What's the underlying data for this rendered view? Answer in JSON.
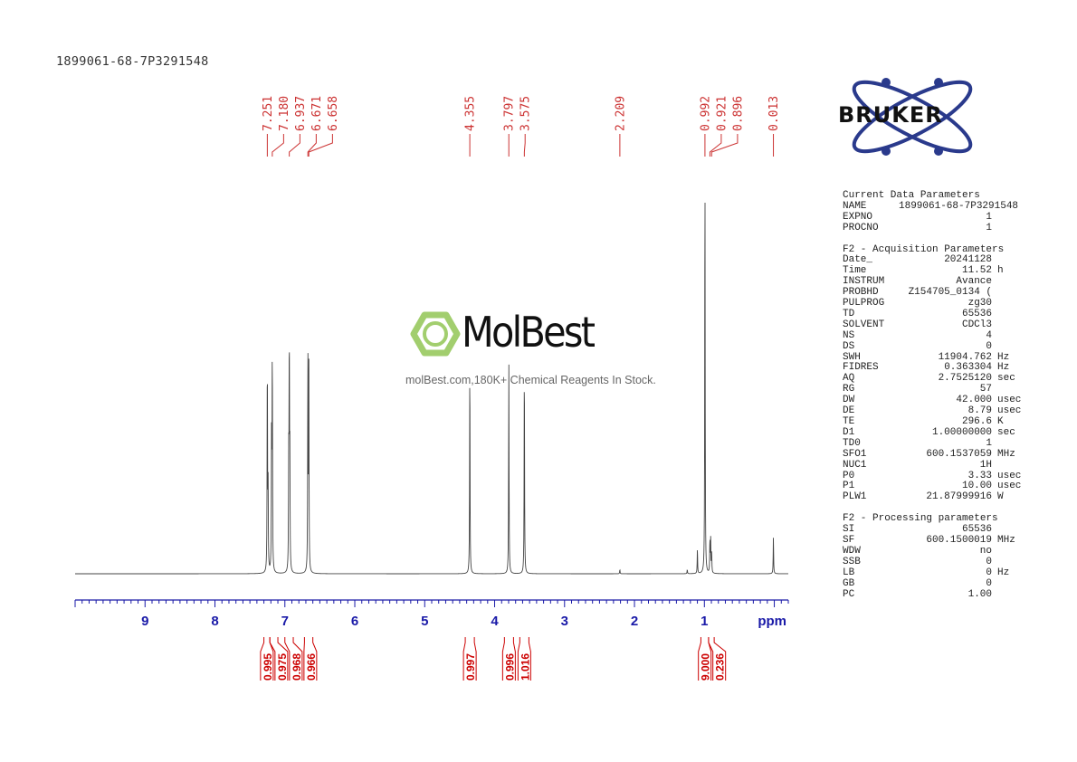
{
  "sample_id": "1899061-68-7P3291548",
  "watermark": {
    "brand": "MolBest",
    "tagline": "molBest.com,180K+ Chemical Reagents In Stock."
  },
  "logo": {
    "brand": "BRUKER"
  },
  "params": {
    "current": {
      "title": "Current Data Parameters",
      "rows": [
        {
          "k": "NAME",
          "v": "1899061-68-7P3291548",
          "u": ""
        },
        {
          "k": "EXPNO",
          "v": "1",
          "u": ""
        },
        {
          "k": "PROCNO",
          "v": "1",
          "u": ""
        }
      ]
    },
    "acq": {
      "title": "F2 - Acquisition Parameters",
      "rows": [
        {
          "k": "Date_",
          "v": "20241128",
          "u": ""
        },
        {
          "k": "Time",
          "v": "11.52",
          "u": "h"
        },
        {
          "k": "INSTRUM",
          "v": "Avance",
          "u": ""
        },
        {
          "k": "PROBHD",
          "v": "Z154705_0134 (",
          "u": ""
        },
        {
          "k": "PULPROG",
          "v": "zg30",
          "u": ""
        },
        {
          "k": "TD",
          "v": "65536",
          "u": ""
        },
        {
          "k": "SOLVENT",
          "v": "CDCl3",
          "u": ""
        },
        {
          "k": "NS",
          "v": "4",
          "u": ""
        },
        {
          "k": "DS",
          "v": "0",
          "u": ""
        },
        {
          "k": "SWH",
          "v": "11904.762",
          "u": "Hz"
        },
        {
          "k": "FIDRES",
          "v": "0.363304",
          "u": "Hz"
        },
        {
          "k": "AQ",
          "v": "2.7525120",
          "u": "sec"
        },
        {
          "k": "RG",
          "v": "57",
          "u": ""
        },
        {
          "k": "DW",
          "v": "42.000",
          "u": "usec"
        },
        {
          "k": "DE",
          "v": "8.79",
          "u": "usec"
        },
        {
          "k": "TE",
          "v": "296.6",
          "u": "K"
        },
        {
          "k": "D1",
          "v": "1.00000000",
          "u": "sec"
        },
        {
          "k": "TD0",
          "v": "1",
          "u": ""
        },
        {
          "k": "SFO1",
          "v": "600.1537059",
          "u": "MHz"
        },
        {
          "k": "NUC1",
          "v": "1H",
          "u": ""
        },
        {
          "k": "P0",
          "v": "3.33",
          "u": "usec"
        },
        {
          "k": "P1",
          "v": "10.00",
          "u": "usec"
        },
        {
          "k": "PLW1",
          "v": "21.87999916",
          "u": "W"
        }
      ]
    },
    "proc": {
      "title": "F2 - Processing parameters",
      "rows": [
        {
          "k": "SI",
          "v": "65536",
          "u": ""
        },
        {
          "k": "SF",
          "v": "600.1500019",
          "u": "MHz"
        },
        {
          "k": "WDW",
          "v": "no",
          "u": ""
        },
        {
          "k": "SSB",
          "v": "0",
          "u": ""
        },
        {
          "k": "LB",
          "v": "0",
          "u": "Hz"
        },
        {
          "k": "GB",
          "v": "0",
          "u": ""
        },
        {
          "k": "PC",
          "v": "1.00",
          "u": ""
        }
      ]
    }
  },
  "chart_data": {
    "type": "line",
    "xlabel": "ppm",
    "xlim": [
      10.0,
      -0.2
    ],
    "x_reversed": true,
    "major_ticks": [
      9,
      8,
      7,
      6,
      5,
      4,
      3,
      2,
      1
    ],
    "minor_step": 0.1,
    "axis_color": "#1a1aa8",
    "peak_label_color": "#cc3333",
    "integral_color": "#cc0000",
    "peak_labels": [
      "7.251",
      "7.180",
      "6.937",
      "6.671",
      "6.658",
      "4.355",
      "3.797",
      "3.575",
      "2.209",
      "0.992",
      "0.921",
      "0.896",
      "0.013"
    ],
    "peaks": [
      {
        "ppm": 7.251,
        "h": 0.53
      },
      {
        "ppm": 7.24,
        "h": 0.2
      },
      {
        "ppm": 7.19,
        "h": 0.35
      },
      {
        "ppm": 7.18,
        "h": 0.54
      },
      {
        "ppm": 6.945,
        "h": 0.25
      },
      {
        "ppm": 6.937,
        "h": 0.54
      },
      {
        "ppm": 6.929,
        "h": 0.25
      },
      {
        "ppm": 6.671,
        "h": 0.53
      },
      {
        "ppm": 6.658,
        "h": 0.52
      },
      {
        "ppm": 4.355,
        "h": 0.52
      },
      {
        "ppm": 3.797,
        "h": 0.52
      },
      {
        "ppm": 3.575,
        "h": 0.52
      },
      {
        "ppm": 2.209,
        "h": 0.01
      },
      {
        "ppm": 1.1,
        "h": 0.06
      },
      {
        "ppm": 1.245,
        "h": 0.01
      },
      {
        "ppm": 0.992,
        "h": 1.0
      },
      {
        "ppm": 0.921,
        "h": 0.08
      },
      {
        "ppm": 0.91,
        "h": 0.08
      },
      {
        "ppm": 0.896,
        "h": 0.05
      },
      {
        "ppm": 0.013,
        "h": 0.09
      }
    ],
    "integrals": [
      {
        "from": 7.3,
        "to": 7.215,
        "value": "0.995"
      },
      {
        "from": 7.215,
        "to": 7.1,
        "value": "0.975"
      },
      {
        "from": 7.0,
        "to": 6.88,
        "value": "0.968"
      },
      {
        "from": 6.72,
        "to": 6.6,
        "value": "0.966"
      },
      {
        "from": 4.42,
        "to": 4.29,
        "value": "0.997"
      },
      {
        "from": 3.86,
        "to": 3.73,
        "value": "0.996"
      },
      {
        "from": 3.64,
        "to": 3.51,
        "value": "1.016"
      },
      {
        "from": 1.05,
        "to": 0.94,
        "value": "9.000"
      },
      {
        "from": 0.94,
        "to": 0.86,
        "value": "0.236"
      }
    ]
  }
}
